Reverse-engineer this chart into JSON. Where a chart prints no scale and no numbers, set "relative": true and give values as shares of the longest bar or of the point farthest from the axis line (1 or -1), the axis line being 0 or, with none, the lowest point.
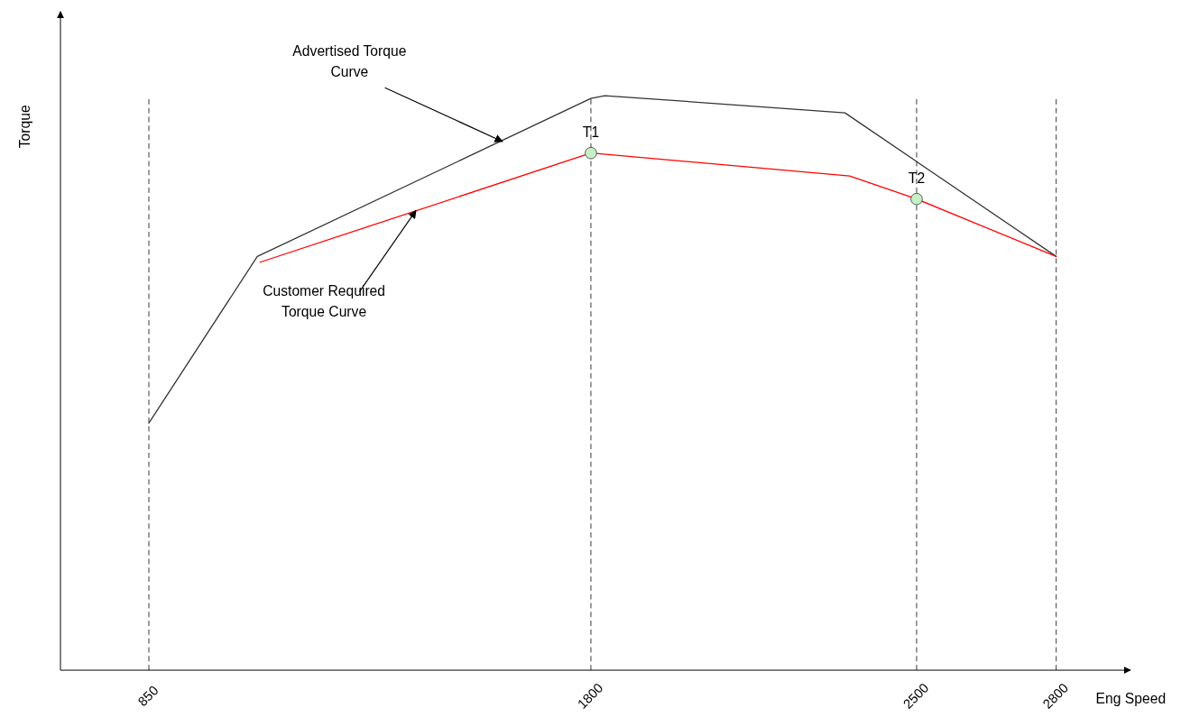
{
  "chart_data": {
    "type": "line",
    "relative": true,
    "xlabel": "Eng Speed",
    "ylabel": "Torque",
    "xlim": [
      660,
      2950
    ],
    "xticks": [
      850,
      1800,
      2500,
      2800
    ],
    "series": [
      {
        "color": "#333333",
        "marker": "none",
        "x": [
          850,
          1083,
          1800,
          1830,
          2346,
          2800
        ],
        "values": [
          0.43,
          0.72,
          0.995,
          1.0,
          0.97,
          0.72
        ]
      },
      {
        "color": "#ff0000",
        "marker": "none",
        "x": [
          1089,
          1800,
          2356,
          2500,
          2800
        ],
        "values": [
          0.71,
          0.9,
          0.86,
          0.82,
          0.72
        ]
      },
      {
        "type": "scatter",
        "color": "#c6efc6",
        "marker": "circle",
        "x": [
          1800,
          2500
        ],
        "values": [
          0.9,
          0.82
        ]
      }
    ],
    "ref_lines": [
      {
        "axis": "x",
        "value": 850,
        "line_style": "dashed",
        "color": "#333333"
      },
      {
        "axis": "x",
        "value": 1800,
        "line_style": "dashed",
        "color": "#333333"
      },
      {
        "axis": "x",
        "value": 2500,
        "line_style": "dashed",
        "color": "#333333"
      },
      {
        "axis": "x",
        "value": 2800,
        "line_style": "dashed",
        "color": "#333333"
      }
    ],
    "annotations": [
      {
        "text": "Advertised Torque Curve",
        "x": 1610,
        "y": 0.92
      },
      {
        "text": "Customer Required Torque Curve",
        "x": 1424,
        "y": 0.8
      },
      {
        "text": "T1",
        "x": 1800,
        "y": 0.9
      },
      {
        "text": "T2",
        "x": 2500,
        "y": 0.82
      }
    ]
  }
}
